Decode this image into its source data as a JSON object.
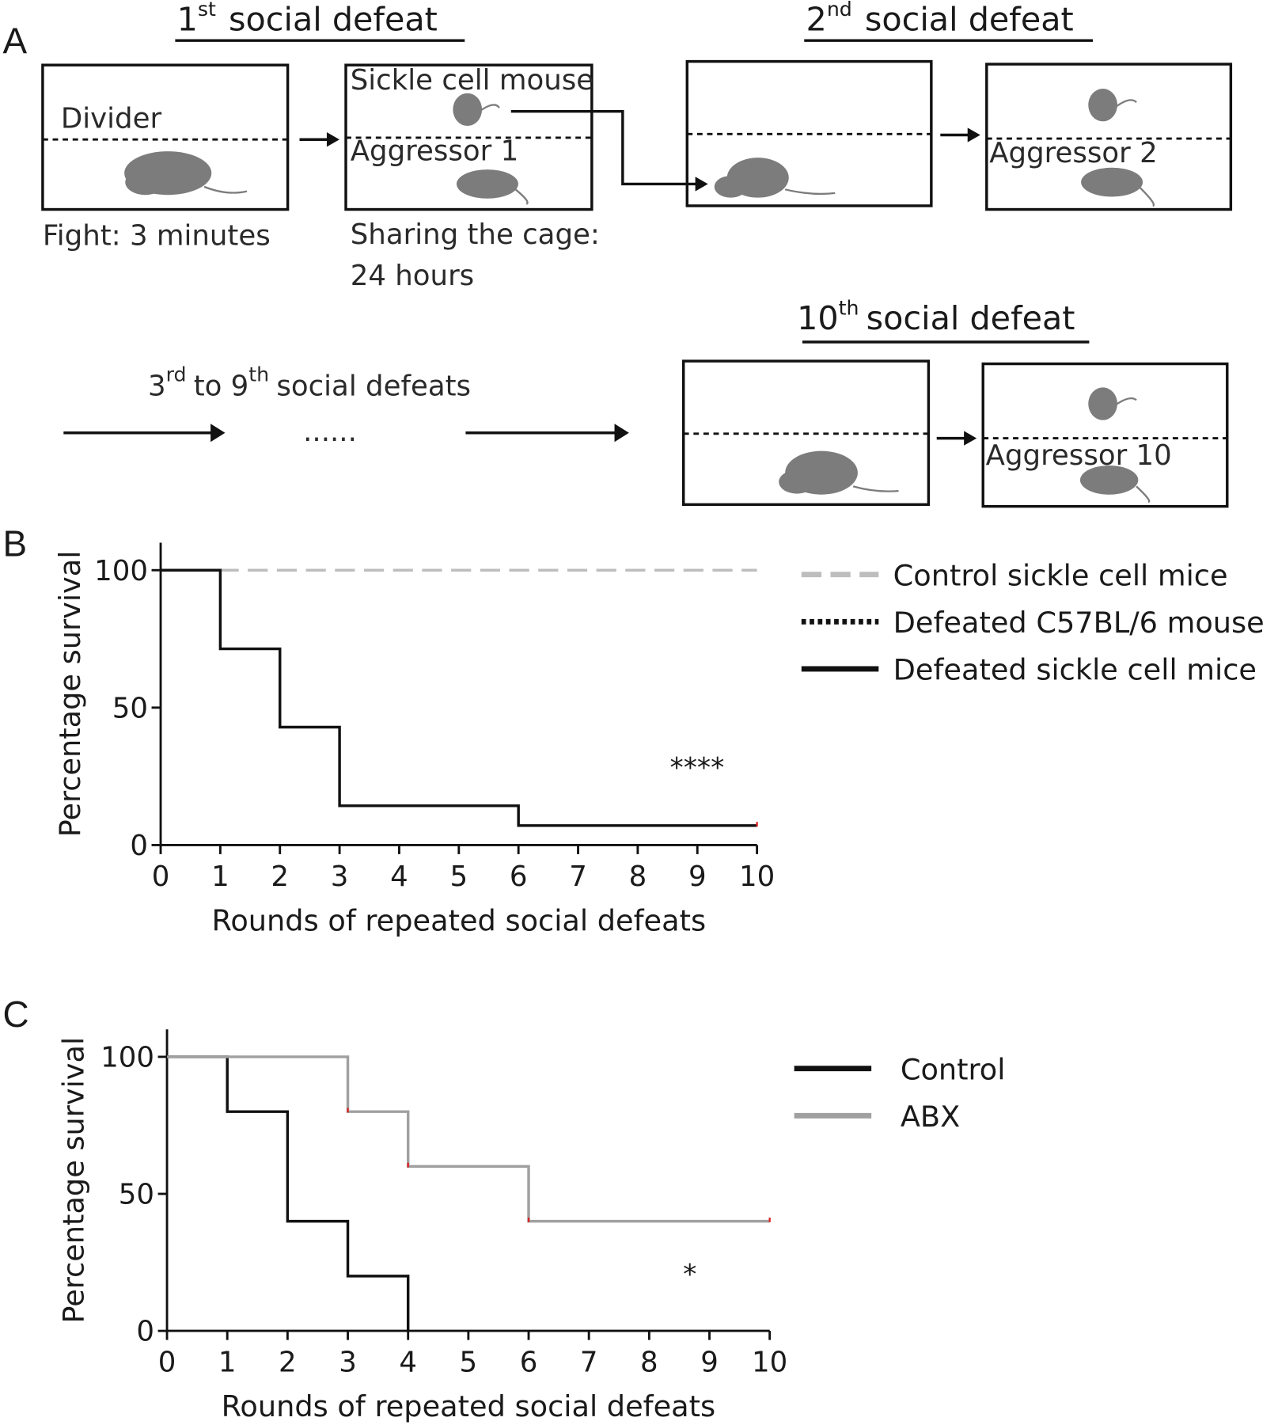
{
  "panel_labels": [
    "A",
    "B",
    "C"
  ],
  "diagram": {
    "titles": [
      {
        "number": "1",
        "sup": "st",
        "rest": "social defeat"
      },
      {
        "number": "2",
        "sup": "nd",
        "rest": "social defeat"
      },
      {
        "number": "10",
        "sup": "th",
        "rest": "social defeat"
      }
    ],
    "divider": "Divider",
    "fight": "Fight: 3 minutes",
    "sickle_mouse": "Sickle cell mouse",
    "aggressor_1": "Aggressor 1",
    "sharing_1": "Sharing the cage:",
    "sharing_2": "24 hours",
    "aggressor_2": "Aggressor  2",
    "aggressor_10": "Aggressor 10",
    "middle": {
      "n1": "3",
      "s1": "rd",
      "mid": "to 9",
      "s2": "th",
      "rest": "social defeats"
    },
    "ellipsis": "......"
  },
  "chart_data": [
    {
      "type": "line",
      "step": "post",
      "xlabel": "Rounds of repeated social defeats",
      "ylabel": "Percentage survival",
      "xlim": [
        0,
        10
      ],
      "ylim": [
        0,
        110
      ],
      "xticks": [
        0,
        1,
        2,
        3,
        4,
        5,
        6,
        7,
        8,
        9,
        10
      ],
      "yticks": [
        0,
        50,
        100
      ],
      "annotation": "****",
      "series": [
        {
          "name": "Control sickle cell mice",
          "color": "#bdbdbd",
          "dash": "dashed",
          "x": [
            0,
            10
          ],
          "values": [
            100,
            100
          ],
          "censored": []
        },
        {
          "name": "Defeated C57BL/6 mouse",
          "color": "#111111",
          "dash": "dotted",
          "x": [
            0,
            1
          ],
          "values": [
            100,
            100
          ],
          "censored": []
        },
        {
          "name": "Defeated sickle cell mice",
          "color": "#111111",
          "dash": "solid",
          "x": [
            0,
            1,
            2,
            3,
            6,
            10
          ],
          "values": [
            100,
            71.4,
            42.9,
            14.3,
            7.1,
            7.1
          ],
          "censored": [
            10
          ]
        }
      ]
    },
    {
      "type": "line",
      "step": "post",
      "xlabel": "Rounds of repeated social defeats",
      "ylabel": "Percentage survival",
      "xlim": [
        0,
        10
      ],
      "ylim": [
        0,
        110
      ],
      "xticks": [
        0,
        1,
        2,
        3,
        4,
        5,
        6,
        7,
        8,
        9,
        10
      ],
      "yticks": [
        0,
        50,
        100
      ],
      "annotation": "*",
      "series": [
        {
          "name": "Control",
          "color": "#111111",
          "dash": "solid",
          "x": [
            0,
            1,
            2,
            3,
            4
          ],
          "values": [
            100,
            80,
            40,
            20,
            0
          ],
          "censored": []
        },
        {
          "name": "ABX",
          "color": "#a0a0a0",
          "dash": "solid",
          "x": [
            0,
            3,
            4,
            6,
            10
          ],
          "values": [
            100,
            80,
            60,
            40,
            40
          ],
          "censored": [
            3,
            4,
            6,
            10
          ]
        }
      ]
    }
  ]
}
